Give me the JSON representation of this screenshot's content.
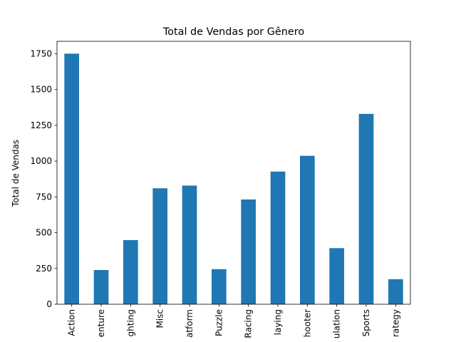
{
  "chart_data": {
    "type": "bar",
    "title": "Total de Vendas por Gênero",
    "xlabel": "",
    "ylabel": "Total de Vendas",
    "categories": [
      "Action",
      "Adventure",
      "Fighting",
      "Misc",
      "Platform",
      "Puzzle",
      "Racing",
      "Role-Playing",
      "Shooter",
      "Simulation",
      "Sports",
      "Strategy"
    ],
    "tick_labels_shown": [
      "Action",
      "enture",
      "ghting",
      "Misc",
      "atform",
      "Puzzle",
      "Racing",
      "laying",
      "hooter",
      "ulation",
      "Sports",
      "rategy"
    ],
    "values": [
      1751,
      239,
      448,
      810,
      829,
      245,
      732,
      927,
      1037,
      392,
      1330,
      175
    ],
    "ylim": [
      0,
      1837
    ],
    "yticks": [
      0,
      250,
      500,
      750,
      1000,
      1250,
      1500,
      1750
    ],
    "grid": false,
    "legend": "none",
    "bar_color": "#1f77b4"
  }
}
